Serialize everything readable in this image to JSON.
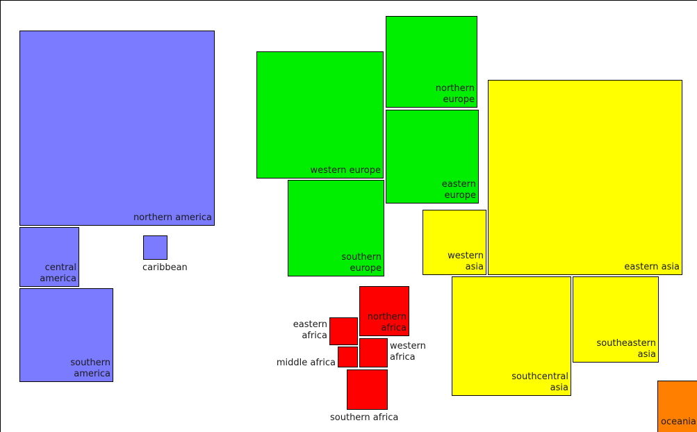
{
  "regions": {
    "northern_america": {
      "label": "northern america",
      "color": "#7b7bff"
    },
    "central_america": {
      "label": "central\namerica",
      "color": "#7b7bff"
    },
    "caribbean": {
      "label": "caribbean",
      "color": "#7b7bff"
    },
    "southern_america": {
      "label": "southern\namerica",
      "color": "#7b7bff"
    },
    "western_europe": {
      "label": "western europe",
      "color": "#00ee00"
    },
    "northern_europe": {
      "label": "northern\neurope",
      "color": "#00ee00"
    },
    "eastern_europe": {
      "label": "eastern\neurope",
      "color": "#00ee00"
    },
    "southern_europe": {
      "label": "southern\neurope",
      "color": "#00ee00"
    },
    "western_asia": {
      "label": "western\nasia",
      "color": "#ffff00"
    },
    "eastern_asia": {
      "label": "eastern asia",
      "color": "#ffff00"
    },
    "southcentral_asia": {
      "label": "southcentral\nasia",
      "color": "#ffff00"
    },
    "southeastern_asia": {
      "label": "southeastern\nasia",
      "color": "#ffff00"
    },
    "northern_africa": {
      "label": "northern\nafrica",
      "color": "#ff0000"
    },
    "eastern_africa": {
      "label": "eastern\nafrica",
      "color": "#ff0000"
    },
    "middle_africa": {
      "label": "middle africa",
      "color": "#ff0000"
    },
    "western_africa": {
      "label": "western\nafrica",
      "color": "#ff0000"
    },
    "southern_africa": {
      "label": "southern africa",
      "color": "#ff0000"
    },
    "oceania": {
      "label": "oceania",
      "color": "#ff8000"
    }
  }
}
